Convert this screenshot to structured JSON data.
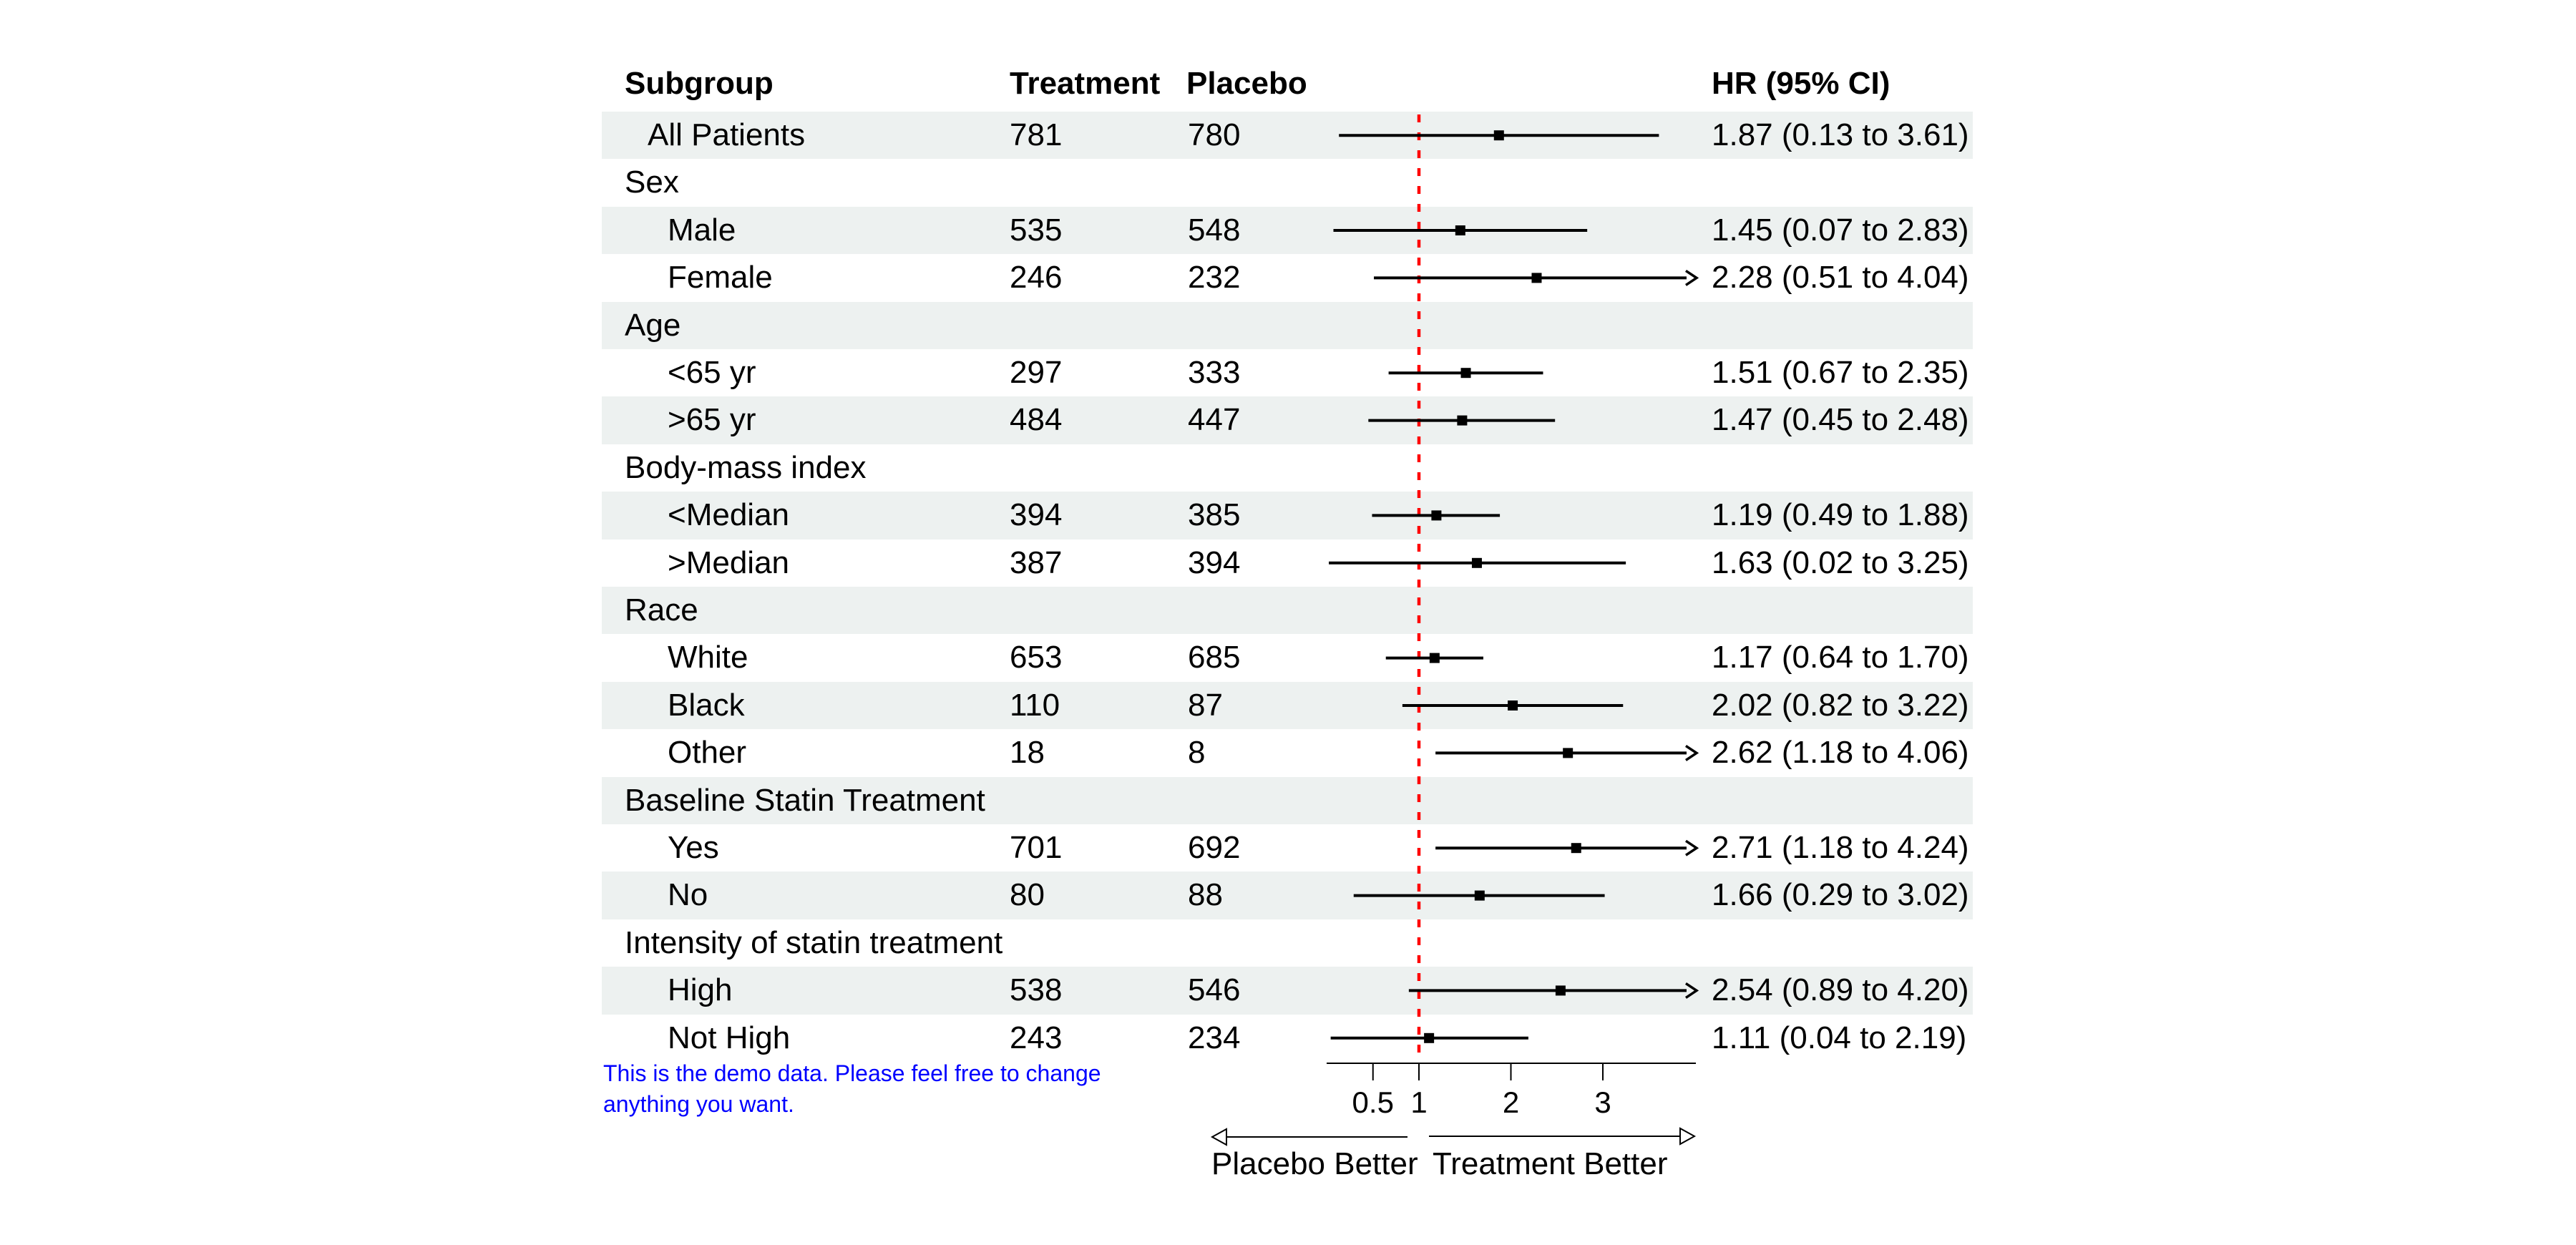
{
  "chart_data": {
    "type": "forest",
    "title": "",
    "columns": {
      "subgroup": "Subgroup",
      "treatment": "Treatment",
      "placebo": "Placebo",
      "hr": "HR (95% CI)"
    },
    "axis": {
      "xlim": [
        0,
        4
      ],
      "ticks": [
        0.5,
        1,
        2,
        3
      ],
      "tick_labels": [
        "0.5",
        "1",
        "2",
        "3"
      ],
      "reference_line": 1,
      "scale": "linear"
    },
    "direction_labels": {
      "left": "Placebo Better",
      "right": "Treatment Better"
    },
    "note_lines": [
      "This is the demo data. Please feel free to change",
      "anything you want."
    ],
    "rows": [
      {
        "type": "data",
        "label": "All Patients",
        "indent": 1,
        "treatment": "781",
        "placebo": "780",
        "hr": 1.87,
        "lo": 0.13,
        "hi": 3.61,
        "hr_text": "1.87 (0.13 to 3.61)",
        "clipped": false,
        "shaded": true
      },
      {
        "type": "group",
        "label": "Sex",
        "indent": 0,
        "shaded": false
      },
      {
        "type": "data",
        "label": "Male",
        "indent": 2,
        "treatment": "535",
        "placebo": "548",
        "hr": 1.45,
        "lo": 0.07,
        "hi": 2.83,
        "hr_text": "1.45 (0.07 to 2.83)",
        "clipped": false,
        "shaded": true
      },
      {
        "type": "data",
        "label": "Female",
        "indent": 2,
        "treatment": "246",
        "placebo": "232",
        "hr": 2.28,
        "lo": 0.51,
        "hi": 4.04,
        "hr_text": "2.28 (0.51 to 4.04)",
        "clipped": true,
        "shaded": false
      },
      {
        "type": "group",
        "label": "Age",
        "indent": 0,
        "shaded": true
      },
      {
        "type": "data",
        "label": "<65 yr",
        "indent": 2,
        "treatment": "297",
        "placebo": "333",
        "hr": 1.51,
        "lo": 0.67,
        "hi": 2.35,
        "hr_text": "1.51 (0.67 to 2.35)",
        "clipped": false,
        "shaded": false
      },
      {
        "type": "data",
        "label": ">65 yr",
        "indent": 2,
        "treatment": "484",
        "placebo": "447",
        "hr": 1.47,
        "lo": 0.45,
        "hi": 2.48,
        "hr_text": "1.47 (0.45 to 2.48)",
        "clipped": false,
        "shaded": true
      },
      {
        "type": "group",
        "label": "Body-mass index",
        "indent": 0,
        "shaded": false
      },
      {
        "type": "data",
        "label": "<Median",
        "indent": 2,
        "treatment": "394",
        "placebo": "385",
        "hr": 1.19,
        "lo": 0.49,
        "hi": 1.88,
        "hr_text": "1.19 (0.49 to 1.88)",
        "clipped": false,
        "shaded": true
      },
      {
        "type": "data",
        "label": ">Median",
        "indent": 2,
        "treatment": "387",
        "placebo": "394",
        "hr": 1.63,
        "lo": 0.02,
        "hi": 3.25,
        "hr_text": "1.63 (0.02 to 3.25)",
        "clipped": false,
        "shaded": false
      },
      {
        "type": "group",
        "label": "Race",
        "indent": 0,
        "shaded": true
      },
      {
        "type": "data",
        "label": "White",
        "indent": 2,
        "treatment": "653",
        "placebo": "685",
        "hr": 1.17,
        "lo": 0.64,
        "hi": 1.7,
        "hr_text": "1.17 (0.64 to 1.70)",
        "clipped": false,
        "shaded": false
      },
      {
        "type": "data",
        "label": "Black",
        "indent": 2,
        "treatment": "110",
        "placebo": "87",
        "hr": 2.02,
        "lo": 0.82,
        "hi": 3.22,
        "hr_text": "2.02 (0.82 to 3.22)",
        "clipped": false,
        "shaded": true
      },
      {
        "type": "data",
        "label": "Other",
        "indent": 2,
        "treatment": "18",
        "placebo": "8",
        "hr": 2.62,
        "lo": 1.18,
        "hi": 4.06,
        "hr_text": "2.62 (1.18 to 4.06)",
        "clipped": true,
        "shaded": false
      },
      {
        "type": "group",
        "label": "Baseline Statin Treatment",
        "indent": 0,
        "shaded": true
      },
      {
        "type": "data",
        "label": "Yes",
        "indent": 2,
        "treatment": "701",
        "placebo": "692",
        "hr": 2.71,
        "lo": 1.18,
        "hi": 4.24,
        "hr_text": "2.71 (1.18 to 4.24)",
        "clipped": true,
        "shaded": false
      },
      {
        "type": "data",
        "label": "No",
        "indent": 2,
        "treatment": "80",
        "placebo": "88",
        "hr": 1.66,
        "lo": 0.29,
        "hi": 3.02,
        "hr_text": "1.66 (0.29 to 3.02)",
        "clipped": false,
        "shaded": true
      },
      {
        "type": "group",
        "label": "Intensity of statin treatment",
        "indent": 0,
        "shaded": false
      },
      {
        "type": "data",
        "label": "High",
        "indent": 2,
        "treatment": "538",
        "placebo": "546",
        "hr": 2.54,
        "lo": 0.89,
        "hi": 4.2,
        "hr_text": "2.54 (0.89 to 4.20)",
        "clipped": true,
        "shaded": true
      },
      {
        "type": "data",
        "label": "Not High",
        "indent": 2,
        "treatment": "243",
        "placebo": "234",
        "hr": 1.11,
        "lo": 0.04,
        "hi": 2.19,
        "hr_text": "1.11 (0.04 to 2.19)",
        "clipped": false,
        "shaded": false
      }
    ],
    "colors": {
      "band": "#EDF1F0",
      "reference_line": "#FF0000",
      "marker": "#000000",
      "ci_line": "#000000",
      "note_text": "#0000FF",
      "text": "#000000"
    }
  }
}
